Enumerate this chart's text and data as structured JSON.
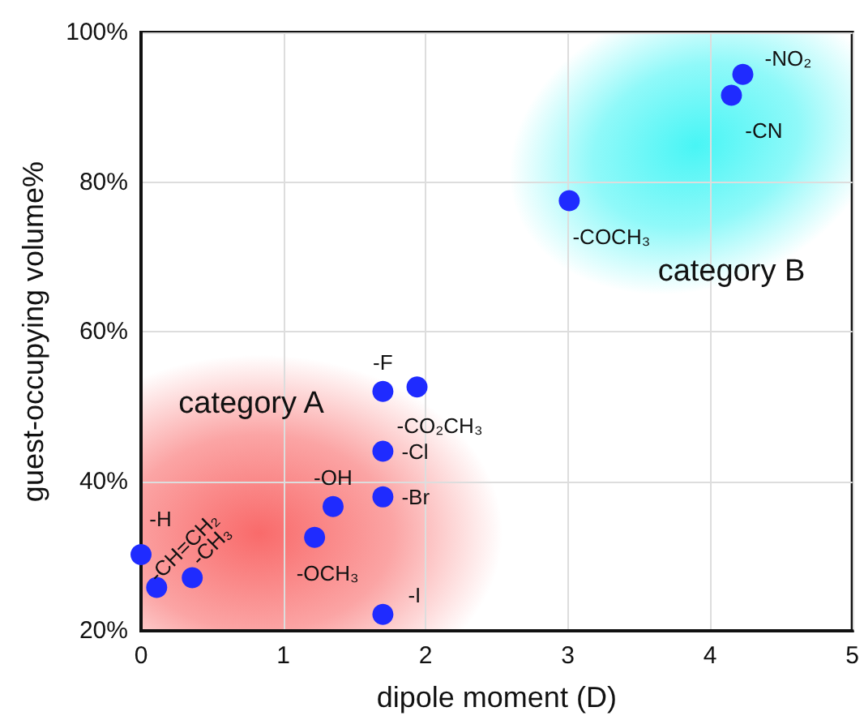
{
  "chart_data": {
    "type": "scatter",
    "xlabel": "dipole moment (D)",
    "ylabel": "guest-occupying volume%",
    "x": [
      0,
      0.11,
      0.36,
      1.22,
      1.35,
      1.7,
      1.7,
      1.7,
      1.94,
      1.7,
      3.01,
      4.15,
      4.23
    ],
    "series": [
      {
        "color": "#1f2bff",
        "values": [
          30.2,
          25.8,
          27.1,
          32.5,
          36.6,
          37.9,
          44.0,
          52.0,
          52.6,
          22.2,
          77.5,
          91.6,
          94.4
        ],
        "value_labels": [
          "-H",
          "-CH=CH₂",
          "-CH₃",
          "-OCH₃",
          "-OH",
          "-Br",
          "-Cl",
          "-F",
          "-CO₂CH₃",
          "-I",
          "-COCH₃",
          "-CN",
          "-NO₂"
        ]
      }
    ],
    "annotations": [
      "category A",
      "category B"
    ],
    "xlim": [
      0,
      5
    ],
    "xticks": [
      0,
      1,
      2,
      3,
      4,
      5
    ],
    "ylim": [
      20,
      100
    ],
    "yticks": [
      {
        "value": 20,
        "label": "20%"
      },
      {
        "value": 40,
        "label": "40%"
      },
      {
        "value": 60,
        "label": "60%"
      },
      {
        "value": 80,
        "label": "80%"
      },
      {
        "value": 100,
        "label": "100%"
      }
    ],
    "grid": true,
    "marker": "circle"
  }
}
